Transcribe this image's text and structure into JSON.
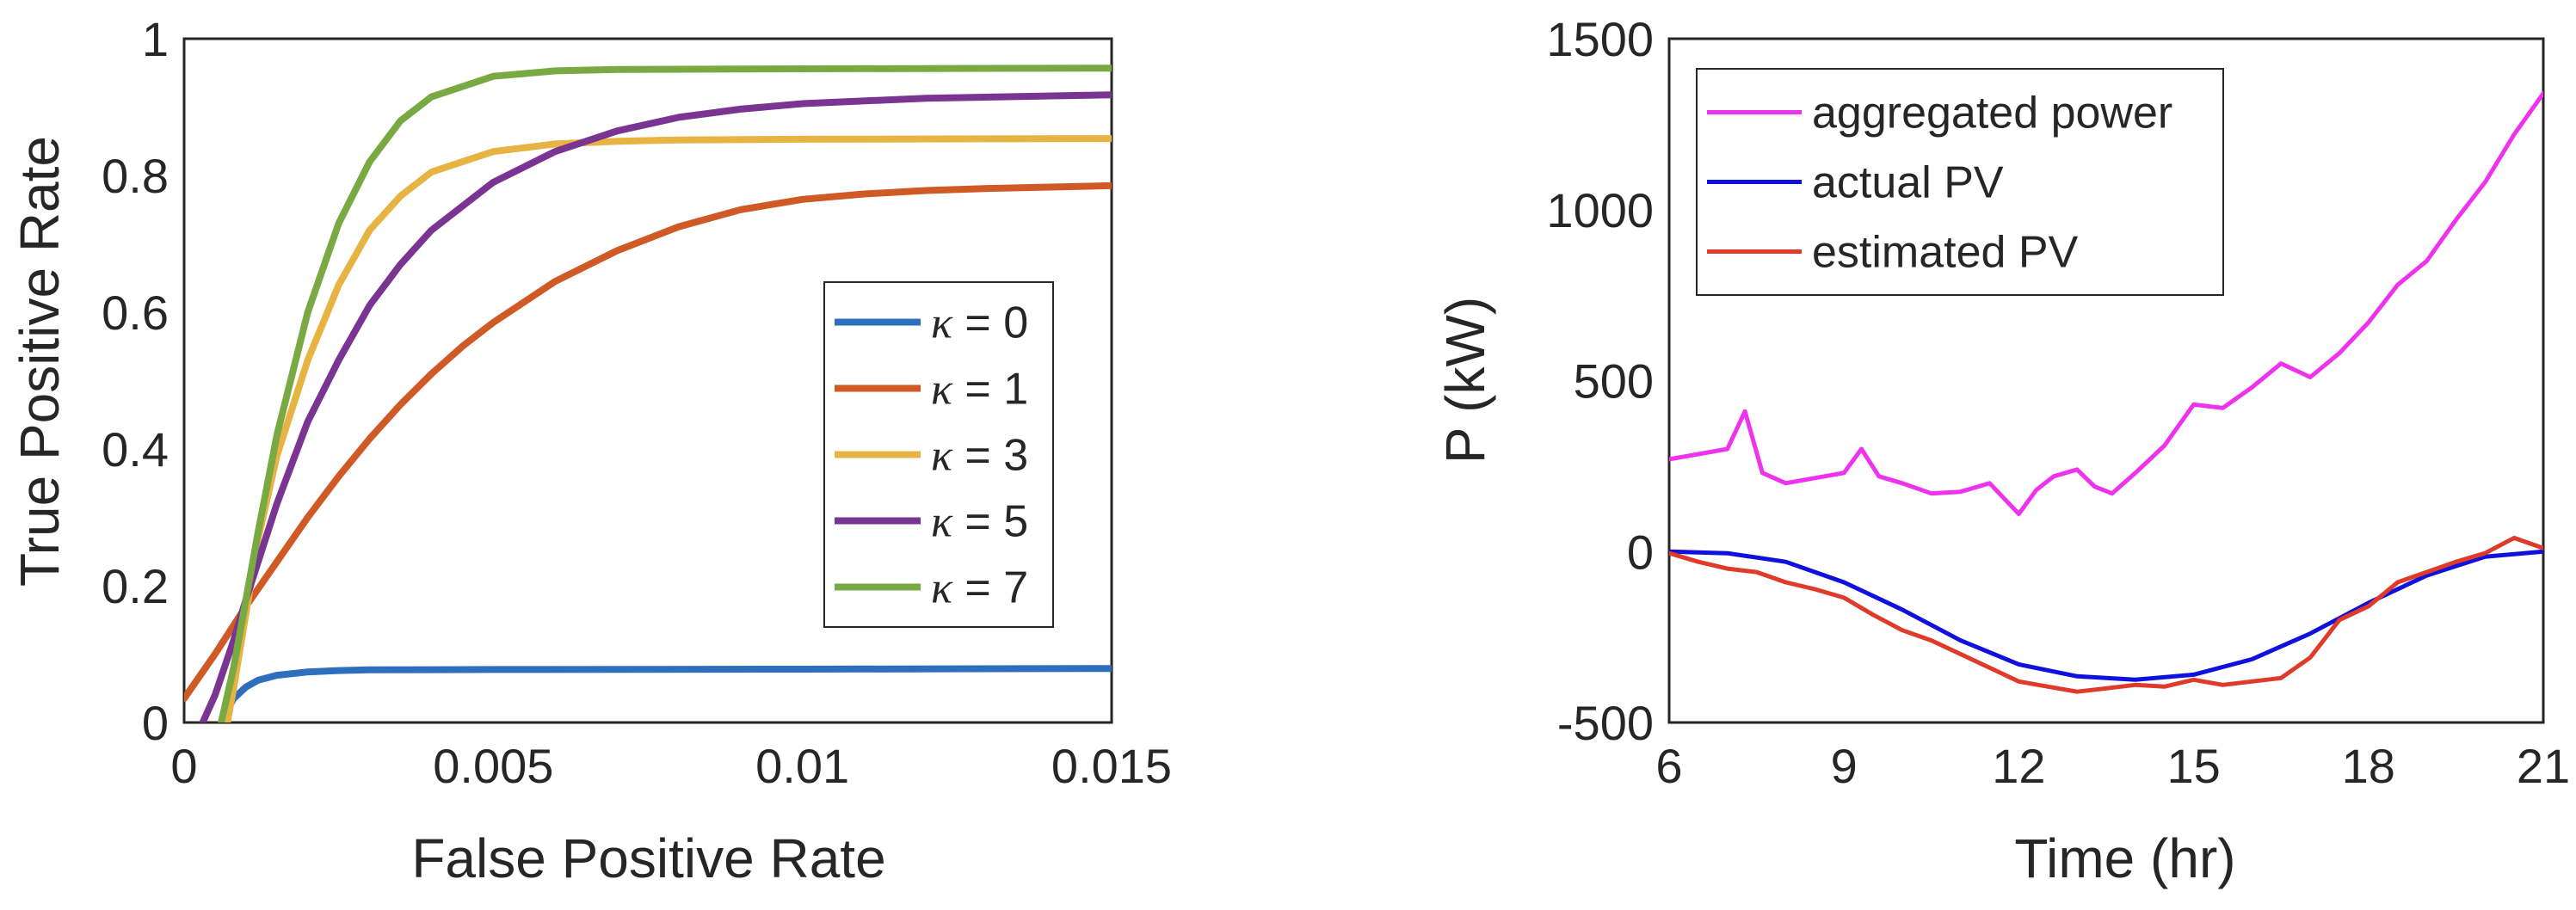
{
  "chart_data": [
    {
      "type": "line",
      "title": "",
      "xlabel": "False Positive Rate",
      "ylabel": "True Positive Rate",
      "xlim": [
        0,
        0.015
      ],
      "ylim": [
        0,
        1
      ],
      "xticks": [
        0,
        0.005,
        0.01,
        0.015
      ],
      "xtick_labels": [
        "0",
        "0.005",
        "0.01",
        "0.015"
      ],
      "yticks": [
        0,
        0.2,
        0.4,
        0.6,
        0.8,
        1
      ],
      "ytick_labels": [
        "0",
        "0.2",
        "0.4",
        "0.6",
        "0.8",
        "1"
      ],
      "grid": false,
      "legend_position": "center-right",
      "series": [
        {
          "name": "κ = 0",
          "symbol": "κ",
          "label_rest": " = 0",
          "color": "#2e6fbd",
          "points": [
            [
              0.0006,
              0.0
            ],
            [
              0.0008,
              0.035
            ],
            [
              0.001,
              0.052
            ],
            [
              0.0012,
              0.062
            ],
            [
              0.0015,
              0.069
            ],
            [
              0.002,
              0.074
            ],
            [
              0.0025,
              0.076
            ],
            [
              0.003,
              0.077
            ],
            [
              0.005,
              0.0775
            ],
            [
              0.01,
              0.078
            ],
            [
              0.015,
              0.079
            ]
          ]
        },
        {
          "name": "κ = 1",
          "symbol": "κ",
          "label_rest": " = 1",
          "color": "#cf5a26",
          "points": [
            [
              0,
              0.035
            ],
            [
              0.0005,
              0.1
            ],
            [
              0.001,
              0.17
            ],
            [
              0.0015,
              0.235
            ],
            [
              0.002,
              0.3
            ],
            [
              0.0025,
              0.36
            ],
            [
              0.003,
              0.415
            ],
            [
              0.0035,
              0.465
            ],
            [
              0.004,
              0.51
            ],
            [
              0.0045,
              0.55
            ],
            [
              0.005,
              0.585
            ],
            [
              0.006,
              0.645
            ],
            [
              0.007,
              0.69
            ],
            [
              0.008,
              0.725
            ],
            [
              0.009,
              0.75
            ],
            [
              0.01,
              0.765
            ],
            [
              0.011,
              0.773
            ],
            [
              0.012,
              0.778
            ],
            [
              0.013,
              0.781
            ],
            [
              0.015,
              0.785
            ]
          ]
        },
        {
          "name": "κ = 3",
          "symbol": "κ",
          "label_rest": " = 3",
          "color": "#e7b343",
          "points": [
            [
              0.0007,
              0.0
            ],
            [
              0.0008,
              0.05
            ],
            [
              0.001,
              0.16
            ],
            [
              0.0012,
              0.27
            ],
            [
              0.0015,
              0.39
            ],
            [
              0.002,
              0.53
            ],
            [
              0.0025,
              0.64
            ],
            [
              0.003,
              0.72
            ],
            [
              0.0035,
              0.77
            ],
            [
              0.004,
              0.805
            ],
            [
              0.005,
              0.835
            ],
            [
              0.006,
              0.846
            ],
            [
              0.007,
              0.85
            ],
            [
              0.008,
              0.852
            ],
            [
              0.01,
              0.853
            ],
            [
              0.015,
              0.854
            ]
          ]
        },
        {
          "name": "κ = 5",
          "symbol": "κ",
          "label_rest": " = 5",
          "color": "#7a3492",
          "points": [
            [
              0.0003,
              0.0
            ],
            [
              0.0005,
              0.04
            ],
            [
              0.0008,
              0.12
            ],
            [
              0.001,
              0.18
            ],
            [
              0.0015,
              0.32
            ],
            [
              0.002,
              0.44
            ],
            [
              0.0025,
              0.53
            ],
            [
              0.003,
              0.61
            ],
            [
              0.0035,
              0.67
            ],
            [
              0.004,
              0.72
            ],
            [
              0.005,
              0.79
            ],
            [
              0.006,
              0.835
            ],
            [
              0.007,
              0.865
            ],
            [
              0.008,
              0.885
            ],
            [
              0.009,
              0.897
            ],
            [
              0.01,
              0.905
            ],
            [
              0.012,
              0.913
            ],
            [
              0.015,
              0.918
            ]
          ]
        },
        {
          "name": "κ = 7",
          "symbol": "κ",
          "label_rest": " = 7",
          "color": "#78a943",
          "points": [
            [
              0.0006,
              0.0
            ],
            [
              0.0008,
              0.08
            ],
            [
              0.001,
              0.18
            ],
            [
              0.0012,
              0.28
            ],
            [
              0.0015,
              0.42
            ],
            [
              0.002,
              0.6
            ],
            [
              0.0025,
              0.73
            ],
            [
              0.003,
              0.82
            ],
            [
              0.0035,
              0.88
            ],
            [
              0.004,
              0.915
            ],
            [
              0.005,
              0.945
            ],
            [
              0.006,
              0.953
            ],
            [
              0.007,
              0.955
            ],
            [
              0.01,
              0.956
            ],
            [
              0.015,
              0.957
            ]
          ]
        }
      ]
    },
    {
      "type": "line",
      "title": "",
      "xlabel": "Time (hr)",
      "ylabel": "P (kW)",
      "xlim": [
        6,
        21
      ],
      "ylim": [
        -500,
        1500
      ],
      "xticks": [
        6,
        9,
        12,
        15,
        18,
        21
      ],
      "xtick_labels": [
        "6",
        "9",
        "12",
        "15",
        "18",
        "21"
      ],
      "yticks": [
        -500,
        0,
        500,
        1000,
        1500
      ],
      "ytick_labels": [
        "-500",
        "0",
        "500",
        "1000",
        "1500"
      ],
      "grid": false,
      "legend_position": "top-left",
      "series": [
        {
          "name": "aggregated power",
          "color": "#ee33ee",
          "points": [
            [
              6,
              270
            ],
            [
              6.5,
              285
            ],
            [
              7,
              300
            ],
            [
              7.3,
              410
            ],
            [
              7.6,
              230
            ],
            [
              8,
              200
            ],
            [
              8.5,
              215
            ],
            [
              9,
              230
            ],
            [
              9.3,
              300
            ],
            [
              9.6,
              220
            ],
            [
              10,
              200
            ],
            [
              10.5,
              170
            ],
            [
              11,
              175
            ],
            [
              11.5,
              200
            ],
            [
              12,
              110
            ],
            [
              12.3,
              180
            ],
            [
              12.6,
              220
            ],
            [
              13,
              240
            ],
            [
              13.3,
              190
            ],
            [
              13.6,
              170
            ],
            [
              14,
              230
            ],
            [
              14.5,
              310
            ],
            [
              15,
              430
            ],
            [
              15.5,
              420
            ],
            [
              16,
              480
            ],
            [
              16.5,
              550
            ],
            [
              17,
              510
            ],
            [
              17.5,
              580
            ],
            [
              18,
              670
            ],
            [
              18.5,
              780
            ],
            [
              19,
              850
            ],
            [
              19.5,
              970
            ],
            [
              20,
              1080
            ],
            [
              20.5,
              1220
            ],
            [
              21,
              1340
            ]
          ]
        },
        {
          "name": "actual PV",
          "color": "#1111dd",
          "points": [
            [
              6,
              0
            ],
            [
              7,
              -5
            ],
            [
              8,
              -30
            ],
            [
              9,
              -90
            ],
            [
              10,
              -170
            ],
            [
              11,
              -260
            ],
            [
              12,
              -330
            ],
            [
              13,
              -365
            ],
            [
              14,
              -375
            ],
            [
              15,
              -360
            ],
            [
              16,
              -315
            ],
            [
              17,
              -240
            ],
            [
              18,
              -150
            ],
            [
              19,
              -70
            ],
            [
              20,
              -15
            ],
            [
              21,
              0
            ]
          ]
        },
        {
          "name": "estimated PV",
          "color": "#e03a2a",
          "points": [
            [
              6,
              -5
            ],
            [
              6.5,
              -30
            ],
            [
              7,
              -50
            ],
            [
              7.5,
              -60
            ],
            [
              8,
              -90
            ],
            [
              8.5,
              -110
            ],
            [
              9,
              -135
            ],
            [
              9.5,
              -185
            ],
            [
              10,
              -230
            ],
            [
              10.5,
              -260
            ],
            [
              11,
              -300
            ],
            [
              11.5,
              -340
            ],
            [
              12,
              -380
            ],
            [
              12.5,
              -395
            ],
            [
              13,
              -410
            ],
            [
              13.5,
              -400
            ],
            [
              14,
              -390
            ],
            [
              14.5,
              -395
            ],
            [
              15,
              -375
            ],
            [
              15.5,
              -390
            ],
            [
              16,
              -380
            ],
            [
              16.5,
              -370
            ],
            [
              17,
              -310
            ],
            [
              17.5,
              -200
            ],
            [
              18,
              -160
            ],
            [
              18.5,
              -90
            ],
            [
              19,
              -60
            ],
            [
              19.5,
              -30
            ],
            [
              20,
              -5
            ],
            [
              20.5,
              40
            ],
            [
              21,
              10
            ]
          ]
        }
      ]
    }
  ]
}
